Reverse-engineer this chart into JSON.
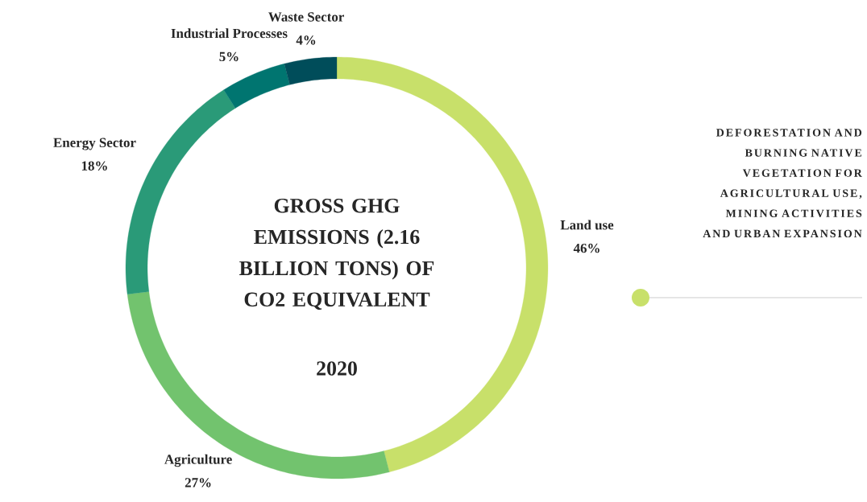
{
  "chart_data": {
    "type": "donut",
    "title": "GROSS GHG EMISSIONS (2.16 BILLION TONS) OF CO2 EQUIVALENT",
    "subtitle": "2020",
    "categories": [
      "Land use",
      "Agriculture",
      "Energy Sector",
      "Industrial Processes",
      "Waste Sector"
    ],
    "values": [
      46,
      27,
      18,
      5,
      4
    ],
    "colors": [
      "#c8e06a",
      "#72c36e",
      "#2a9a78",
      "#007570",
      "#004d5a"
    ],
    "value_labels": [
      "46%",
      "27%",
      "18%",
      "5%",
      "4%"
    ],
    "annotations": [
      "DEFORESTATION AND BURNING NATIVE VEGETATION FOR AGRICULTURAL USE, MINING ACTIVITIES AND URBAN EXPANSION"
    ]
  }
}
